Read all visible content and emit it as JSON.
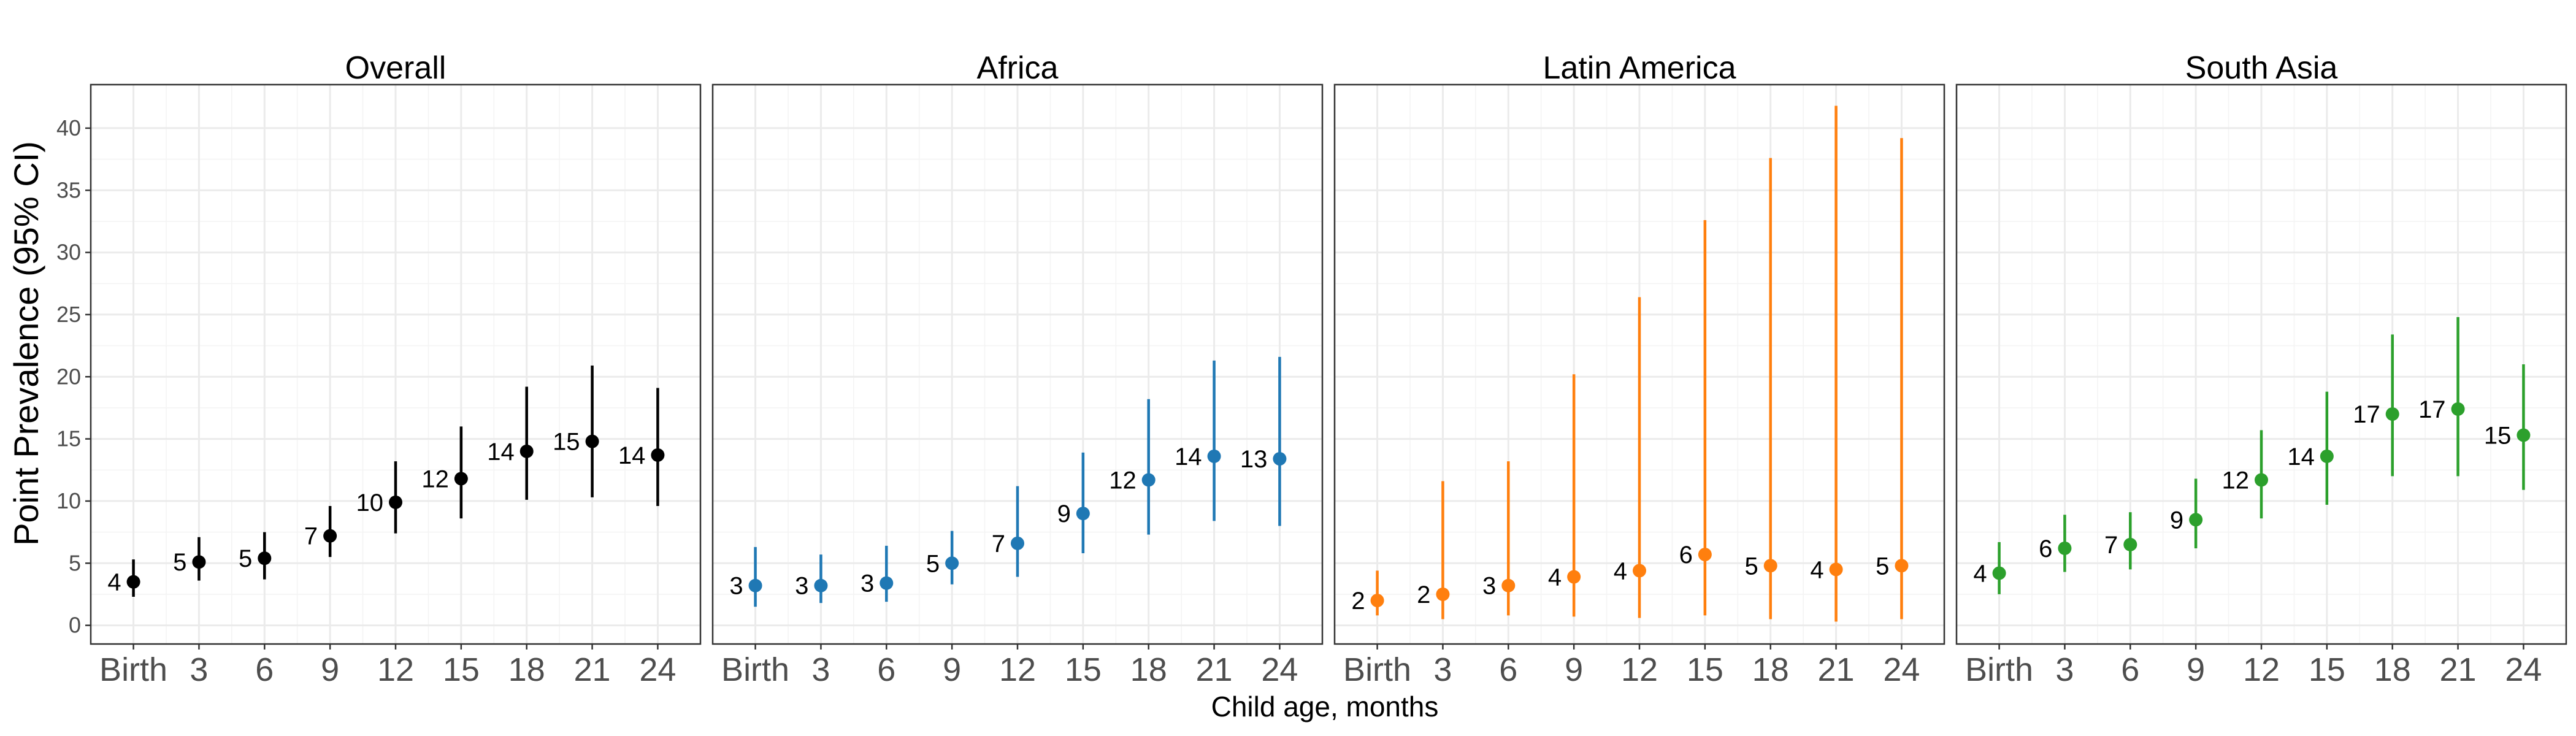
{
  "chart_data": {
    "type": "scatter",
    "ylabel": "Point Prevalence (95% CI)",
    "xlabel": "Child age, months",
    "ylim": [
      -1.5,
      43.5
    ],
    "y_ticks": [
      0,
      5,
      10,
      15,
      20,
      25,
      30,
      35,
      40
    ],
    "categories": [
      "Birth",
      "3",
      "6",
      "9",
      "12",
      "15",
      "18",
      "21",
      "24"
    ],
    "x_positions": [
      0,
      3,
      6,
      9,
      12,
      15,
      18,
      21,
      24
    ],
    "grid": true,
    "panels": [
      {
        "title": "Overall",
        "color": "#000000",
        "values": [
          3.5,
          5.1,
          5.4,
          7.2,
          9.9,
          11.8,
          14.0,
          14.8,
          13.7
        ],
        "ci_low": [
          2.3,
          3.6,
          3.7,
          5.5,
          7.4,
          8.6,
          10.1,
          10.3,
          9.6
        ],
        "ci_high": [
          5.3,
          7.1,
          7.5,
          9.6,
          13.2,
          16.0,
          19.2,
          20.9,
          19.1
        ],
        "labels": [
          "4",
          "5",
          "5",
          "7",
          "10",
          "12",
          "14",
          "15",
          "14"
        ]
      },
      {
        "title": "Africa",
        "color": "#1f78b4",
        "values": [
          3.2,
          3.2,
          3.4,
          5.0,
          6.6,
          9.0,
          11.7,
          13.6,
          13.4
        ],
        "ci_low": [
          1.5,
          1.8,
          1.9,
          3.3,
          3.9,
          5.8,
          7.3,
          8.4,
          8.0
        ],
        "ci_high": [
          6.3,
          5.7,
          6.4,
          7.6,
          11.2,
          13.9,
          18.2,
          21.3,
          21.6
        ],
        "labels": [
          "3",
          "3",
          "3",
          "5",
          "7",
          "9",
          "12",
          "14",
          "13"
        ]
      },
      {
        "title": "Latin America",
        "color": "#ff7f0e",
        "values": [
          2.0,
          2.5,
          3.2,
          3.9,
          4.4,
          5.7,
          4.8,
          4.5,
          4.8
        ],
        "ci_low": [
          0.8,
          0.5,
          0.8,
          0.7,
          0.6,
          0.8,
          0.5,
          0.3,
          0.5
        ],
        "ci_high": [
          4.4,
          11.6,
          13.2,
          20.2,
          26.4,
          32.6,
          37.6,
          41.8,
          39.2
        ],
        "labels": [
          "2",
          "2",
          "3",
          "4",
          "4",
          "6",
          "5",
          "4",
          "5"
        ]
      },
      {
        "title": "South Asia",
        "color": "#2ca02c",
        "values": [
          4.2,
          6.2,
          6.5,
          8.5,
          11.7,
          13.6,
          17.0,
          17.4,
          15.3
        ],
        "ci_low": [
          2.5,
          4.3,
          4.5,
          6.2,
          8.6,
          9.7,
          12.0,
          12.0,
          10.9
        ],
        "ci_high": [
          6.7,
          8.9,
          9.1,
          11.8,
          15.7,
          18.8,
          23.4,
          24.8,
          21.0
        ],
        "labels": [
          "4",
          "6",
          "7",
          "9",
          "12",
          "14",
          "17",
          "17",
          "15"
        ]
      }
    ]
  }
}
